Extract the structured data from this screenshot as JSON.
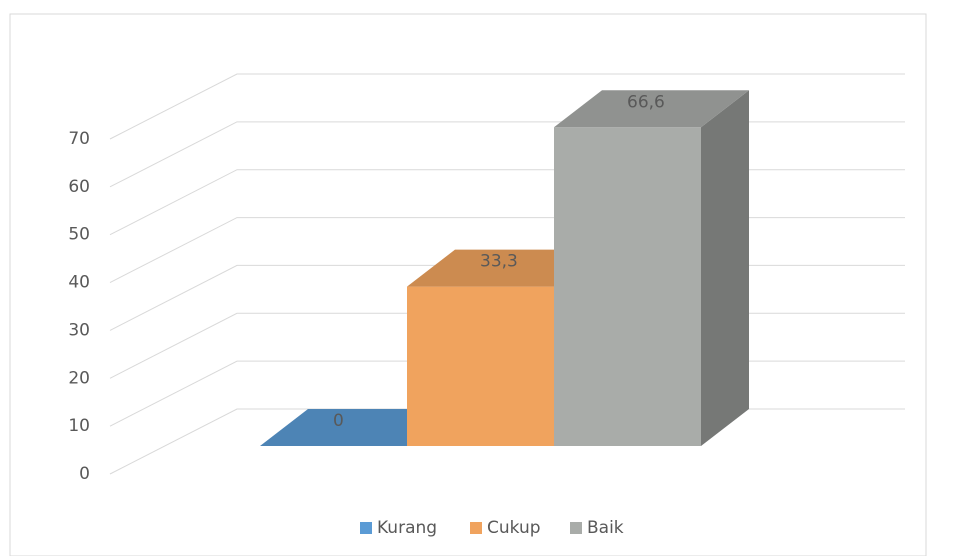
{
  "chart_data": {
    "type": "bar3d",
    "categories": [
      "Kurang",
      "Cukup",
      "Baik"
    ],
    "values": [
      0,
      33.3,
      66.6
    ],
    "value_labels": [
      "0",
      "33,3",
      "66,6"
    ],
    "colors": [
      "#5b9bd5",
      "#f0a35e",
      "#a9aca9"
    ],
    "ylim": [
      0,
      70
    ],
    "yticks": [
      0,
      10,
      20,
      30,
      40,
      50,
      60,
      70
    ],
    "grid": true,
    "legend": "bottom"
  }
}
